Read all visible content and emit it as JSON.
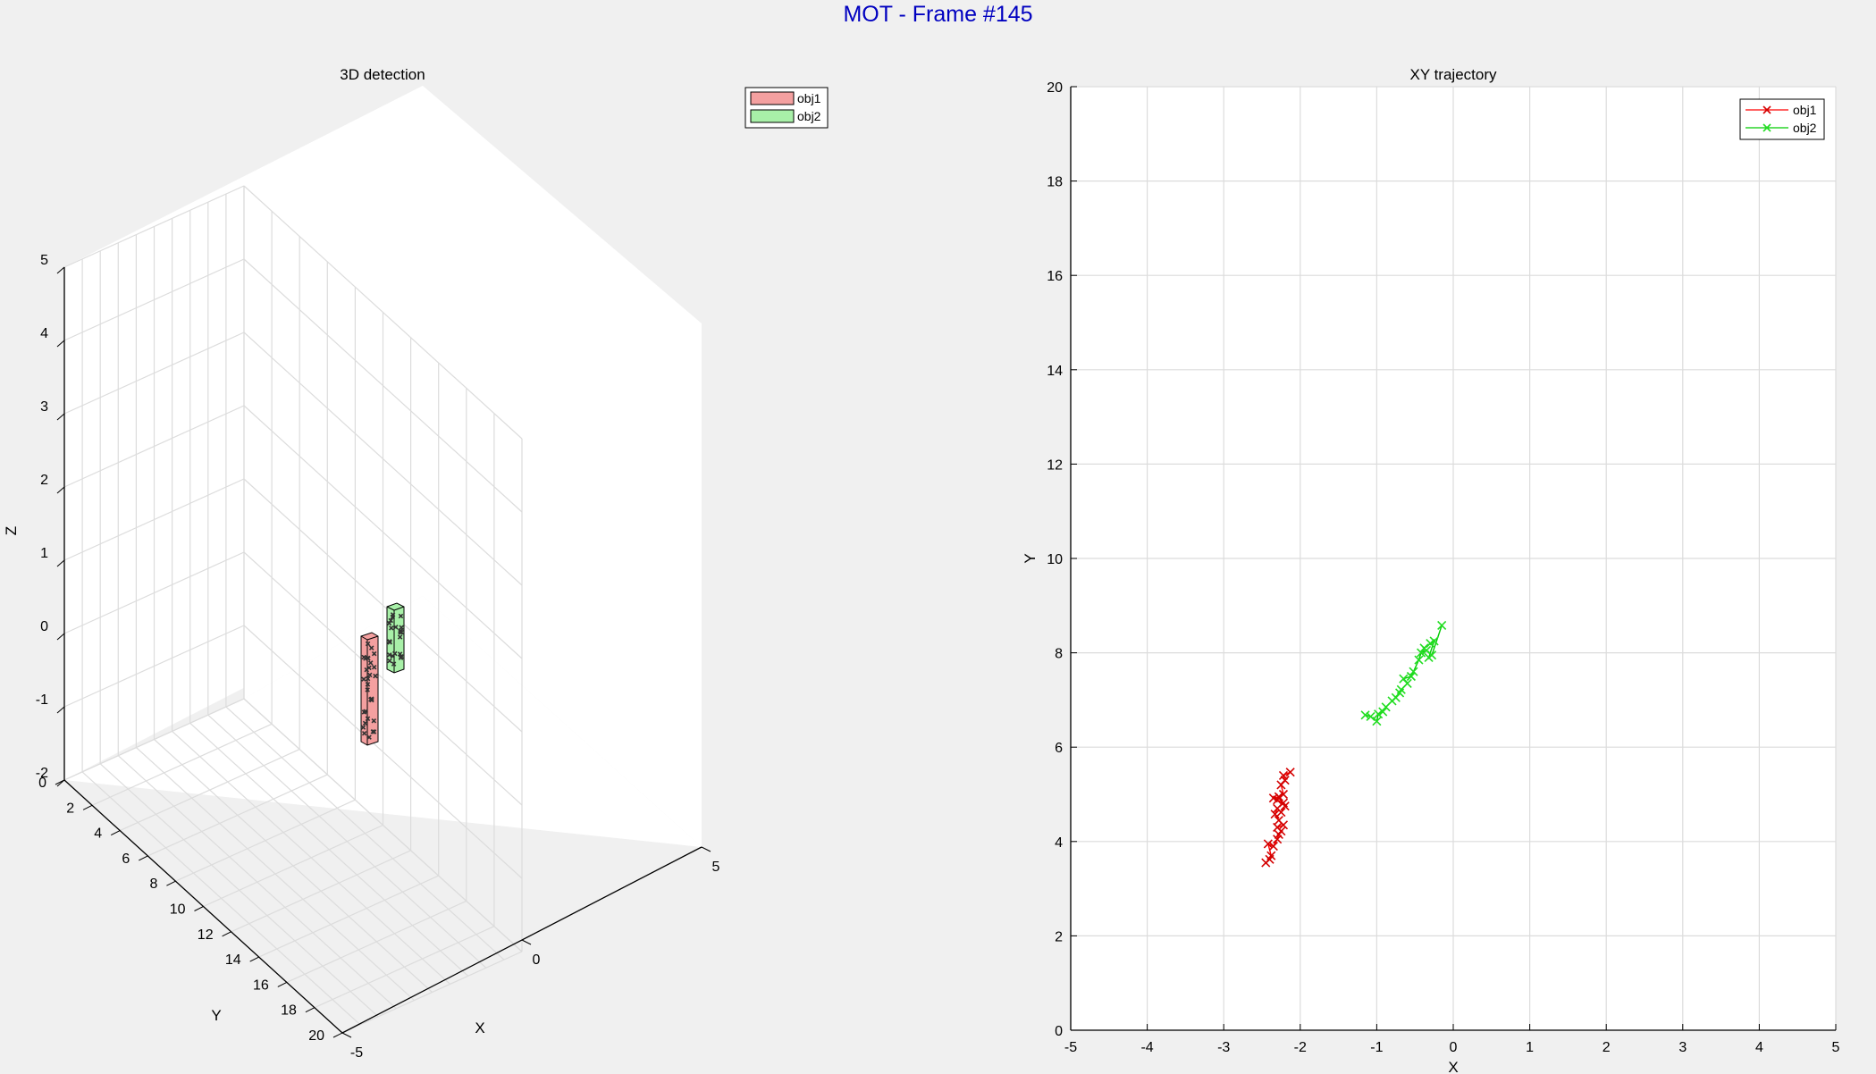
{
  "figure": {
    "suptitle": "MOT - Frame #145"
  },
  "colors": {
    "obj1_line": "#ff0000",
    "obj1_marker": "#d40000",
    "obj1_fill": "#f4a0a0",
    "obj2_line": "#00cc00",
    "obj2_marker": "#22dd22",
    "obj2_fill": "#a8f0a8",
    "grid": "#dcdcdc",
    "axes_bg": "#ffffff"
  },
  "chart_data": [
    {
      "type": "3d-box",
      "title": "3D detection",
      "xlabel": "X",
      "ylabel": "Y",
      "zlabel": "Z",
      "xlim": [
        -5,
        5
      ],
      "ylim": [
        0,
        20
      ],
      "zlim": [
        -2,
        5
      ],
      "xticks": [
        "-5",
        "0",
        "5"
      ],
      "yticks": [
        "0",
        "2",
        "4",
        "6",
        "8",
        "10",
        "12",
        "14",
        "16",
        "18",
        "20"
      ],
      "zticks": [
        "-2",
        "-1",
        "0",
        "1",
        "2",
        "3",
        "4",
        "5"
      ],
      "grid": true,
      "legend": {
        "placement": "top-right",
        "entries": [
          "obj1",
          "obj2"
        ]
      },
      "boxes": [
        {
          "name": "obj1",
          "z_range": [
            -1.4,
            0.1
          ]
        },
        {
          "name": "obj2",
          "z_range": [
            -0.45,
            0.5
          ]
        }
      ]
    },
    {
      "type": "line",
      "title": "XY trajectory",
      "xlabel": "X",
      "ylabel": "Y",
      "xlim": [
        -5,
        5
      ],
      "ylim": [
        0,
        20
      ],
      "xticks": [
        "-5",
        "-4",
        "-3",
        "-2",
        "-1",
        "0",
        "1",
        "2",
        "3",
        "4",
        "5"
      ],
      "yticks": [
        "0",
        "2",
        "4",
        "6",
        "8",
        "10",
        "12",
        "14",
        "16",
        "18",
        "20"
      ],
      "grid": true,
      "legend": {
        "placement": "top-right",
        "entries": [
          "obj1",
          "obj2"
        ]
      },
      "series": [
        {
          "name": "obj1",
          "marker": "x",
          "x": [
            -2.45,
            -2.4,
            -2.38,
            -2.42,
            -2.35,
            -2.3,
            -2.28,
            -2.25,
            -2.3,
            -2.22,
            -2.28,
            -2.33,
            -2.3,
            -2.25,
            -2.2,
            -2.22,
            -2.3,
            -2.35,
            -2.28,
            -2.22,
            -2.25,
            -2.2,
            -2.22,
            -2.13
          ],
          "y": [
            3.55,
            3.62,
            3.7,
            3.95,
            3.9,
            4.05,
            4.15,
            4.22,
            4.3,
            4.35,
            4.45,
            4.58,
            4.7,
            4.62,
            4.75,
            4.82,
            4.88,
            4.92,
            4.95,
            5.0,
            5.2,
            5.3,
            5.4,
            5.47
          ]
        },
        {
          "name": "obj2",
          "marker": "x",
          "x": [
            -1.15,
            -1.08,
            -1.0,
            -0.98,
            -0.92,
            -0.88,
            -0.8,
            -0.75,
            -0.7,
            -0.68,
            -0.6,
            -0.65,
            -0.55,
            -0.52,
            -0.45,
            -0.42,
            -0.35,
            -0.38,
            -0.3,
            -0.25,
            -0.32,
            -0.28,
            -0.15
          ],
          "y": [
            6.68,
            6.65,
            6.55,
            6.7,
            6.75,
            6.85,
            6.98,
            7.05,
            7.15,
            7.22,
            7.35,
            7.45,
            7.5,
            7.6,
            7.85,
            8.0,
            8.05,
            8.1,
            8.2,
            8.25,
            7.9,
            7.95,
            8.58
          ]
        }
      ]
    }
  ]
}
